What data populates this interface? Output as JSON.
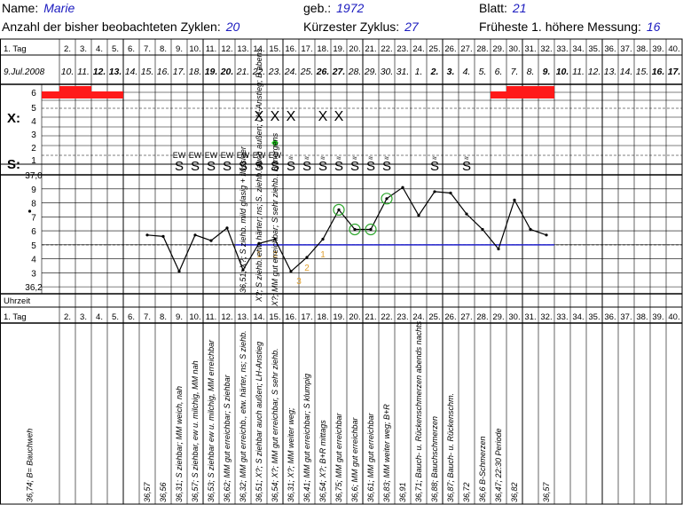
{
  "header": {
    "name_label": "Name:",
    "name_value": "Marie",
    "dob_label": "geb.:",
    "dob_value": "1972",
    "sheet_label": "Blatt:",
    "sheet_value": "21",
    "cycles_label": "Anzahl der bisher beobachteten Zyklen:",
    "cycles_value": "20",
    "shortest_label": "Kürzester Zyklus:",
    "shortest_value": "27",
    "earliest_label": "Früheste 1. höhere Messung:",
    "earliest_value": "16"
  },
  "row_labels": {
    "day": "1. Tag",
    "x": "X:",
    "s": "S:",
    "time": "Uhrzeit",
    "day_bottom": "1. Tag"
  },
  "days": [
    "1. Tag",
    "2.",
    "3.",
    "4.",
    "5.",
    "6.",
    "7.",
    "8.",
    "9.",
    "10.",
    "11.",
    "12.",
    "13.",
    "14.",
    "15.",
    "16.",
    "17.",
    "18.",
    "19.",
    "20.",
    "21.",
    "22.",
    "23.",
    "24.",
    "25.",
    "26.",
    "27.",
    "28.",
    "29.",
    "30.",
    "31.",
    "32.",
    "33.",
    "34.",
    "35.",
    "36.",
    "37.",
    "38.",
    "39.",
    "40."
  ],
  "dates": [
    {
      "t": "9.Jul.2008",
      "b": false
    },
    {
      "t": "10.",
      "b": false
    },
    {
      "t": "11.",
      "b": false
    },
    {
      "t": "12.",
      "b": true
    },
    {
      "t": "13.",
      "b": true
    },
    {
      "t": "14.",
      "b": false
    },
    {
      "t": "15.",
      "b": false
    },
    {
      "t": "16.",
      "b": false
    },
    {
      "t": "17.",
      "b": false
    },
    {
      "t": "18.",
      "b": false
    },
    {
      "t": "19.",
      "b": true
    },
    {
      "t": "20.",
      "b": true
    },
    {
      "t": "21.",
      "b": false
    },
    {
      "t": "22.",
      "b": false
    },
    {
      "t": "23.",
      "b": false
    },
    {
      "t": "24.",
      "b": false
    },
    {
      "t": "25.",
      "b": false
    },
    {
      "t": "26.",
      "b": true
    },
    {
      "t": "27.",
      "b": true
    },
    {
      "t": "28.",
      "b": false
    },
    {
      "t": "29.",
      "b": false
    },
    {
      "t": "30.",
      "b": false
    },
    {
      "t": "31.",
      "b": false
    },
    {
      "t": "1.",
      "b": false
    },
    {
      "t": "2.",
      "b": true
    },
    {
      "t": "3.",
      "b": true
    },
    {
      "t": "4.",
      "b": false
    },
    {
      "t": "5.",
      "b": false
    },
    {
      "t": "6.",
      "b": false
    },
    {
      "t": "7.",
      "b": false
    },
    {
      "t": "8.",
      "b": false
    },
    {
      "t": "9.",
      "b": true
    },
    {
      "t": "10.",
      "b": true
    },
    {
      "t": "11.",
      "b": false
    },
    {
      "t": "12.",
      "b": false
    },
    {
      "t": "13.",
      "b": false
    },
    {
      "t": "14.",
      "b": false
    },
    {
      "t": "15.",
      "b": false
    },
    {
      "t": "16.",
      "b": true
    },
    {
      "t": "17.",
      "b": true
    }
  ],
  "bleeding_scale": [
    "6",
    "5",
    "4",
    "3",
    "2",
    "1"
  ],
  "bleeding": [
    5,
    6,
    6,
    5,
    5,
    0,
    0,
    0,
    0,
    0,
    0,
    0,
    0,
    0,
    0,
    0,
    0,
    0,
    0,
    0,
    0,
    0,
    0,
    0,
    0,
    0,
    0,
    0,
    5,
    6,
    6,
    6,
    0,
    0,
    0,
    0,
    0,
    0,
    0,
    0
  ],
  "x_marks_days": [
    14,
    15,
    16,
    18,
    19
  ],
  "x_mark_symbol": "X",
  "ewe_days": [
    9,
    10,
    11,
    12,
    13,
    14,
    15
  ],
  "ewe_text": "EW",
  "s_symbol": "S",
  "s_days": [
    9,
    10,
    11,
    12,
    13,
    14,
    15,
    16,
    17,
    18,
    19,
    20,
    21,
    22,
    25,
    27
  ],
  "s2_days": [
    16,
    17,
    18,
    19,
    20,
    21,
    22,
    25,
    27
  ],
  "s2_symbol": "≈",
  "green_dot_day": 15,
  "temp_axis_labels": [
    "37,0",
    "9",
    "8",
    "7",
    "6",
    "5",
    "4",
    "3",
    "36,2"
  ],
  "chart_data": {
    "type": "line",
    "title": "",
    "xlabel": "",
    "ylabel": "",
    "ylim": [
      36.15,
      37.0
    ],
    "x": [
      1,
      7,
      8,
      9,
      10,
      11,
      12,
      13,
      14,
      15,
      16,
      17,
      18,
      19,
      20,
      21,
      22,
      23,
      24,
      25,
      26,
      27,
      28,
      29,
      30,
      31,
      32
    ],
    "values": [
      36.74,
      36.57,
      36.56,
      36.31,
      36.57,
      36.53,
      36.62,
      36.32,
      36.51,
      36.54,
      36.31,
      36.41,
      36.54,
      36.75,
      36.61,
      36.61,
      36.83,
      36.91,
      36.71,
      36.88,
      36.87,
      36.72,
      36.61,
      36.47,
      36.82,
      36.61,
      36.57
    ],
    "circled_days": [
      19,
      20,
      21,
      22
    ],
    "cover_line": {
      "value": 36.5,
      "from_day": 13,
      "to_day": 32
    },
    "cover_line_grey": {
      "value": 36.5,
      "from_day": 1,
      "to_day": 40
    },
    "post_shift_counts": [
      {
        "day": 14,
        "label": "1"
      },
      {
        "day": 15,
        "label": "2"
      },
      {
        "day": 17,
        "label": "2"
      },
      {
        "day": 17,
        "label": "3"
      },
      {
        "day": 18,
        "label": "1"
      }
    ]
  },
  "chart_notes_vertical": [
    {
      "day": 13,
      "text": "36,51; X?; S ziehb. mild glasig + flüssiger"
    },
    {
      "day": 14,
      "text": "X?; S ziehb. etw. härter; ns; S. ziehb. auch außen; LH-Anstieg; B abens"
    },
    {
      "day": 15,
      "text": "X?; MM gut erreichbar; S sehr ziehb.; B morgens"
    },
    {
      "day": 13,
      "text": "S ziehbar"
    },
    {
      "day": 23,
      "text": "Bauch- u. Rückenschmerzen abends nachts"
    }
  ],
  "notes": [
    {
      "day": 1,
      "text": "36,74; B= Bauchweh"
    },
    {
      "day": 7,
      "text": "36,57"
    },
    {
      "day": 8,
      "text": "36,56"
    },
    {
      "day": 9,
      "text": "36,31; S ziehbar; MM weich, nah"
    },
    {
      "day": 10,
      "text": "36,57; S ziehbar, ew u. milchig, MM nah"
    },
    {
      "day": 11,
      "text": "36,53; S ziehbar ew u. milchig, MM erreichbar"
    },
    {
      "day": 12,
      "text": "36,62; MM gut erreichbar; S ziehbar"
    },
    {
      "day": 13,
      "text": "36,32; MM gut erreichb., etw. härter, ns; S ziehb."
    },
    {
      "day": 14,
      "text": "36,51; X?; S ziehbar auch außen; LH-Anstieg"
    },
    {
      "day": 15,
      "text": "36,54; X?; MM gut erreichbar, S sehr ziehb."
    },
    {
      "day": 16,
      "text": "36,31; X?; MM weiter weg;"
    },
    {
      "day": 17,
      "text": "36,41; MM gut erreichbar; S klumpig"
    },
    {
      "day": 18,
      "text": "36,54; X?; B+R mittags"
    },
    {
      "day": 19,
      "text": "36,75; MM gut erreichbar"
    },
    {
      "day": 20,
      "text": "36,6; MM gut erreichbar"
    },
    {
      "day": 21,
      "text": "36,61; MM gut erreichbar"
    },
    {
      "day": 22,
      "text": "36,83; MM weiter weg; B+R"
    },
    {
      "day": 23,
      "text": "36,91"
    },
    {
      "day": 24,
      "text": "36,71; Bauch- u. Rückenschmerzen abends nachts"
    },
    {
      "day": 25,
      "text": "36,88; Bauchschmerzen"
    },
    {
      "day": 26,
      "text": "36,87; Bauch- u. Rückenschm."
    },
    {
      "day": 27,
      "text": "36,72"
    },
    {
      "day": 28,
      "text": "36,6 B-Schmerzen"
    },
    {
      "day": 29,
      "text": "36,47; 22:30 Periode"
    },
    {
      "day": 30,
      "text": "36,82"
    },
    {
      "day": 32,
      "text": "36,57"
    }
  ],
  "colors": {
    "bleeding": "#ff1a1a",
    "temp_line": "#000000",
    "cover_line": "#2222cc",
    "circle": "#2aa52a",
    "dot": "#22cc22",
    "count": "#e0a030",
    "header_value": "#1b1bbf"
  }
}
